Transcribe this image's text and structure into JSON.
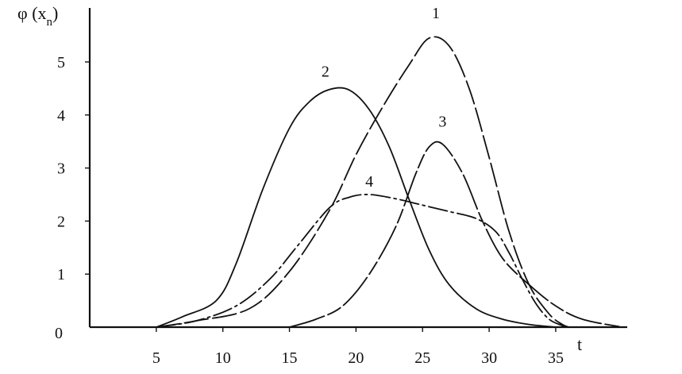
{
  "chart_data": {
    "type": "line",
    "ylabel": "φ (x",
    "ylabel_sub": "n",
    "ylabel_close": ")",
    "xlabel": "t",
    "xlim": [
      0,
      40
    ],
    "ylim": [
      0,
      6
    ],
    "x_ticks": [
      {
        "value": 5,
        "label": "5"
      },
      {
        "value": 10,
        "label": "10"
      },
      {
        "value": 15,
        "label": "15"
      },
      {
        "value": 20,
        "label": "20"
      },
      {
        "value": 25,
        "label": "25"
      },
      {
        "value": 30,
        "label": "30"
      },
      {
        "value": 35,
        "label": "35"
      }
    ],
    "y_ticks": [
      {
        "value": 0,
        "label": "0"
      },
      {
        "value": 1,
        "label": "1"
      },
      {
        "value": 2,
        "label": "2"
      },
      {
        "value": 3,
        "label": "3"
      },
      {
        "value": 4,
        "label": "4"
      },
      {
        "value": 5,
        "label": "5"
      }
    ],
    "grid": false,
    "legend": "inline curve numbers",
    "series": [
      {
        "name": "1",
        "line_style": "long-dash",
        "label_at": [
          26,
          5.82
        ],
        "points": [
          [
            5,
            0
          ],
          [
            8,
            0.12
          ],
          [
            12,
            0.35
          ],
          [
            15,
            1.05
          ],
          [
            18,
            2.2
          ],
          [
            20,
            3.25
          ],
          [
            22,
            4.15
          ],
          [
            24,
            4.95
          ],
          [
            25.5,
            5.45
          ],
          [
            27,
            5.3
          ],
          [
            28.5,
            4.5
          ],
          [
            30,
            3.2
          ],
          [
            31.5,
            1.8
          ],
          [
            33,
            0.8
          ],
          [
            34.5,
            0.25
          ],
          [
            35.5,
            0.05
          ],
          [
            36,
            0
          ]
        ]
      },
      {
        "name": "2",
        "line_style": "solid",
        "label_at": [
          17.7,
          4.72
        ],
        "points": [
          [
            5,
            0
          ],
          [
            7,
            0.2
          ],
          [
            9.5,
            0.5
          ],
          [
            11,
            1.2
          ],
          [
            13,
            2.6
          ],
          [
            15,
            3.75
          ],
          [
            16.5,
            4.25
          ],
          [
            18,
            4.48
          ],
          [
            19.5,
            4.47
          ],
          [
            21,
            4.1
          ],
          [
            22.5,
            3.4
          ],
          [
            24,
            2.4
          ],
          [
            25.5,
            1.45
          ],
          [
            27,
            0.8
          ],
          [
            29,
            0.35
          ],
          [
            31,
            0.15
          ],
          [
            33,
            0.05
          ],
          [
            35,
            0
          ]
        ]
      },
      {
        "name": "3",
        "line_style": "solid with dashed segments",
        "label_at": [
          26.5,
          3.78
        ],
        "points": [
          [
            15,
            0
          ],
          [
            17,
            0.15
          ],
          [
            19,
            0.4
          ],
          [
            21,
            1.0
          ],
          [
            23,
            1.9
          ],
          [
            24.5,
            2.9
          ],
          [
            25.5,
            3.4
          ],
          [
            26.5,
            3.45
          ],
          [
            28,
            2.9
          ],
          [
            29.5,
            2.0
          ],
          [
            31,
            1.3
          ],
          [
            33,
            0.8
          ],
          [
            35,
            0.4
          ],
          [
            37,
            0.15
          ],
          [
            40,
            0
          ]
        ]
      },
      {
        "name": "4",
        "line_style": "dash-dot",
        "label_at": [
          21,
          2.65
        ],
        "points": [
          [
            5,
            0
          ],
          [
            8,
            0.12
          ],
          [
            11,
            0.4
          ],
          [
            13.5,
            0.9
          ],
          [
            15.5,
            1.5
          ],
          [
            18,
            2.25
          ],
          [
            19.5,
            2.45
          ],
          [
            21,
            2.5
          ],
          [
            23,
            2.42
          ],
          [
            25,
            2.3
          ],
          [
            27,
            2.18
          ],
          [
            29,
            2.05
          ],
          [
            30.5,
            1.8
          ],
          [
            31.5,
            1.4
          ],
          [
            32.5,
            0.9
          ],
          [
            33.5,
            0.45
          ],
          [
            34.5,
            0.15
          ],
          [
            35.5,
            0.03
          ],
          [
            36,
            0
          ]
        ]
      }
    ]
  }
}
